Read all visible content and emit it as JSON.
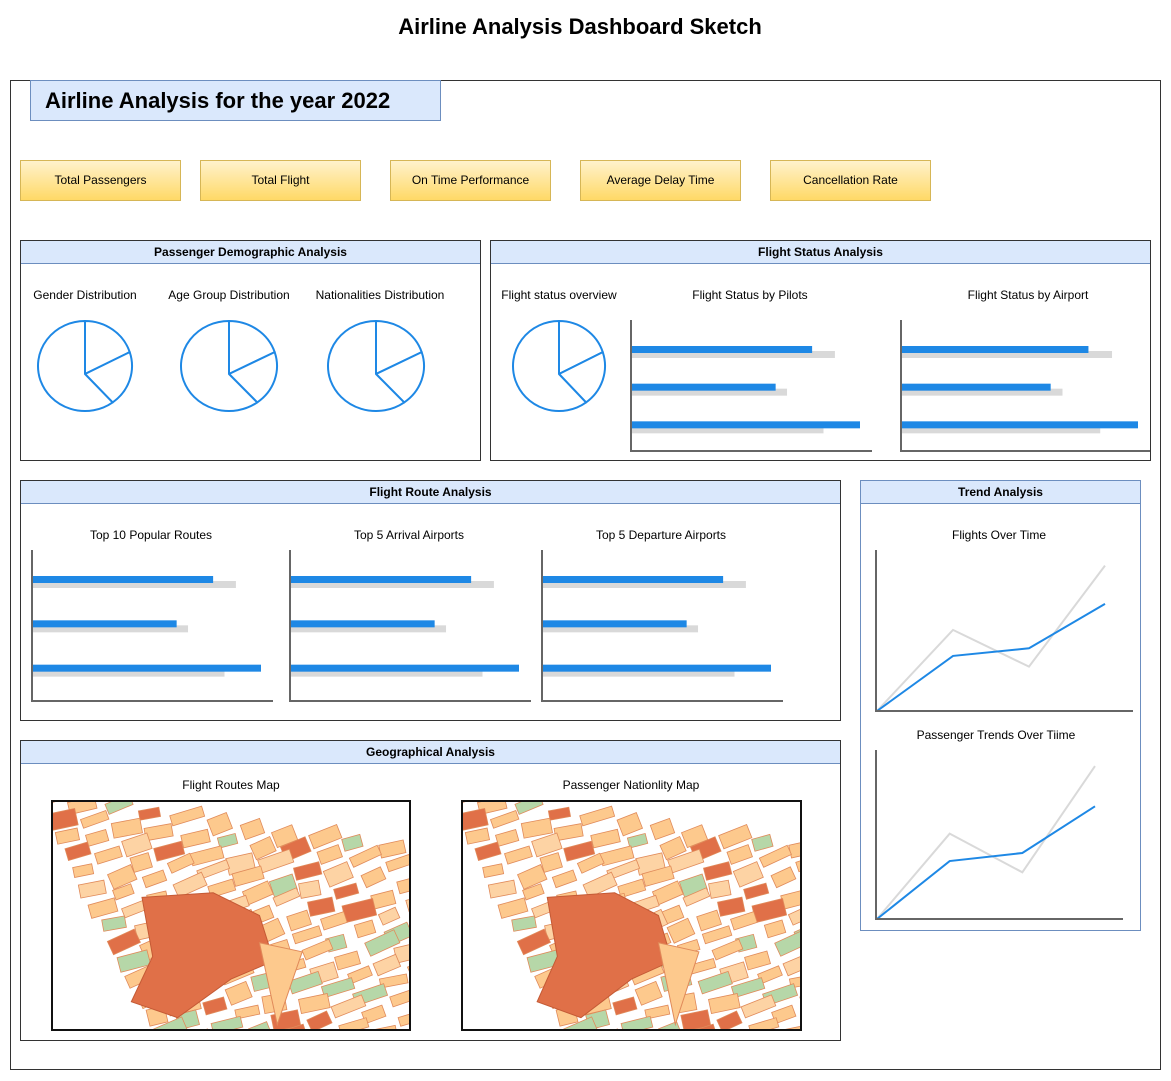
{
  "page_title": "Airline Analysis Dashboard Sketch",
  "dashboard_title": "Airline Analysis for the year 2022",
  "kpis": [
    "Total Passengers",
    "Total Flight",
    "On Time Performance",
    "Average Delay Time",
    "Cancellation Rate"
  ],
  "demographic": {
    "title": "Passenger Demographic Analysis",
    "charts": [
      "Gender Distribution",
      "Age Group Distribution",
      "Nationalities Distribution"
    ]
  },
  "flight_status": {
    "title": "Flight Status Analysis",
    "overview": "Flight status overview",
    "pilots": "Flight Status by Pilots",
    "airport": "Flight Status by Airport"
  },
  "route": {
    "title": "Flight Route Analysis",
    "charts": [
      "Top 10 Popular Routes",
      "Top 5 Arrival Airports",
      "Top 5 Departure Airports"
    ]
  },
  "trend": {
    "title": "Trend Analysis",
    "flights": "Flights Over Time",
    "passengers": "Passenger Trends Over Tiime"
  },
  "geo": {
    "title": "Geographical Analysis",
    "routes_map": "Flight Routes Map",
    "nationality_map": "Passenger Nationlity Map"
  },
  "colors": {
    "accent": "#1e88e5",
    "ghost": "#d9d9d9",
    "panel_head": "#dae8fc",
    "kpi": "#ffd966"
  },
  "chart_data": [
    {
      "type": "pie",
      "note": "placeholder pie sketch",
      "values": [
        20,
        20,
        60
      ]
    },
    {
      "type": "bar",
      "series": [
        {
          "values": [
            0.79,
            0.63,
            1.0
          ]
        },
        {
          "values": [
            0.89,
            0.68,
            0.84
          ]
        }
      ]
    },
    {
      "type": "line",
      "series": [
        {
          "values": [
            0,
            0.36,
            0.41,
            0.7
          ]
        },
        {
          "values": [
            0,
            0.53,
            0.29,
            0.78
          ]
        }
      ]
    }
  ]
}
